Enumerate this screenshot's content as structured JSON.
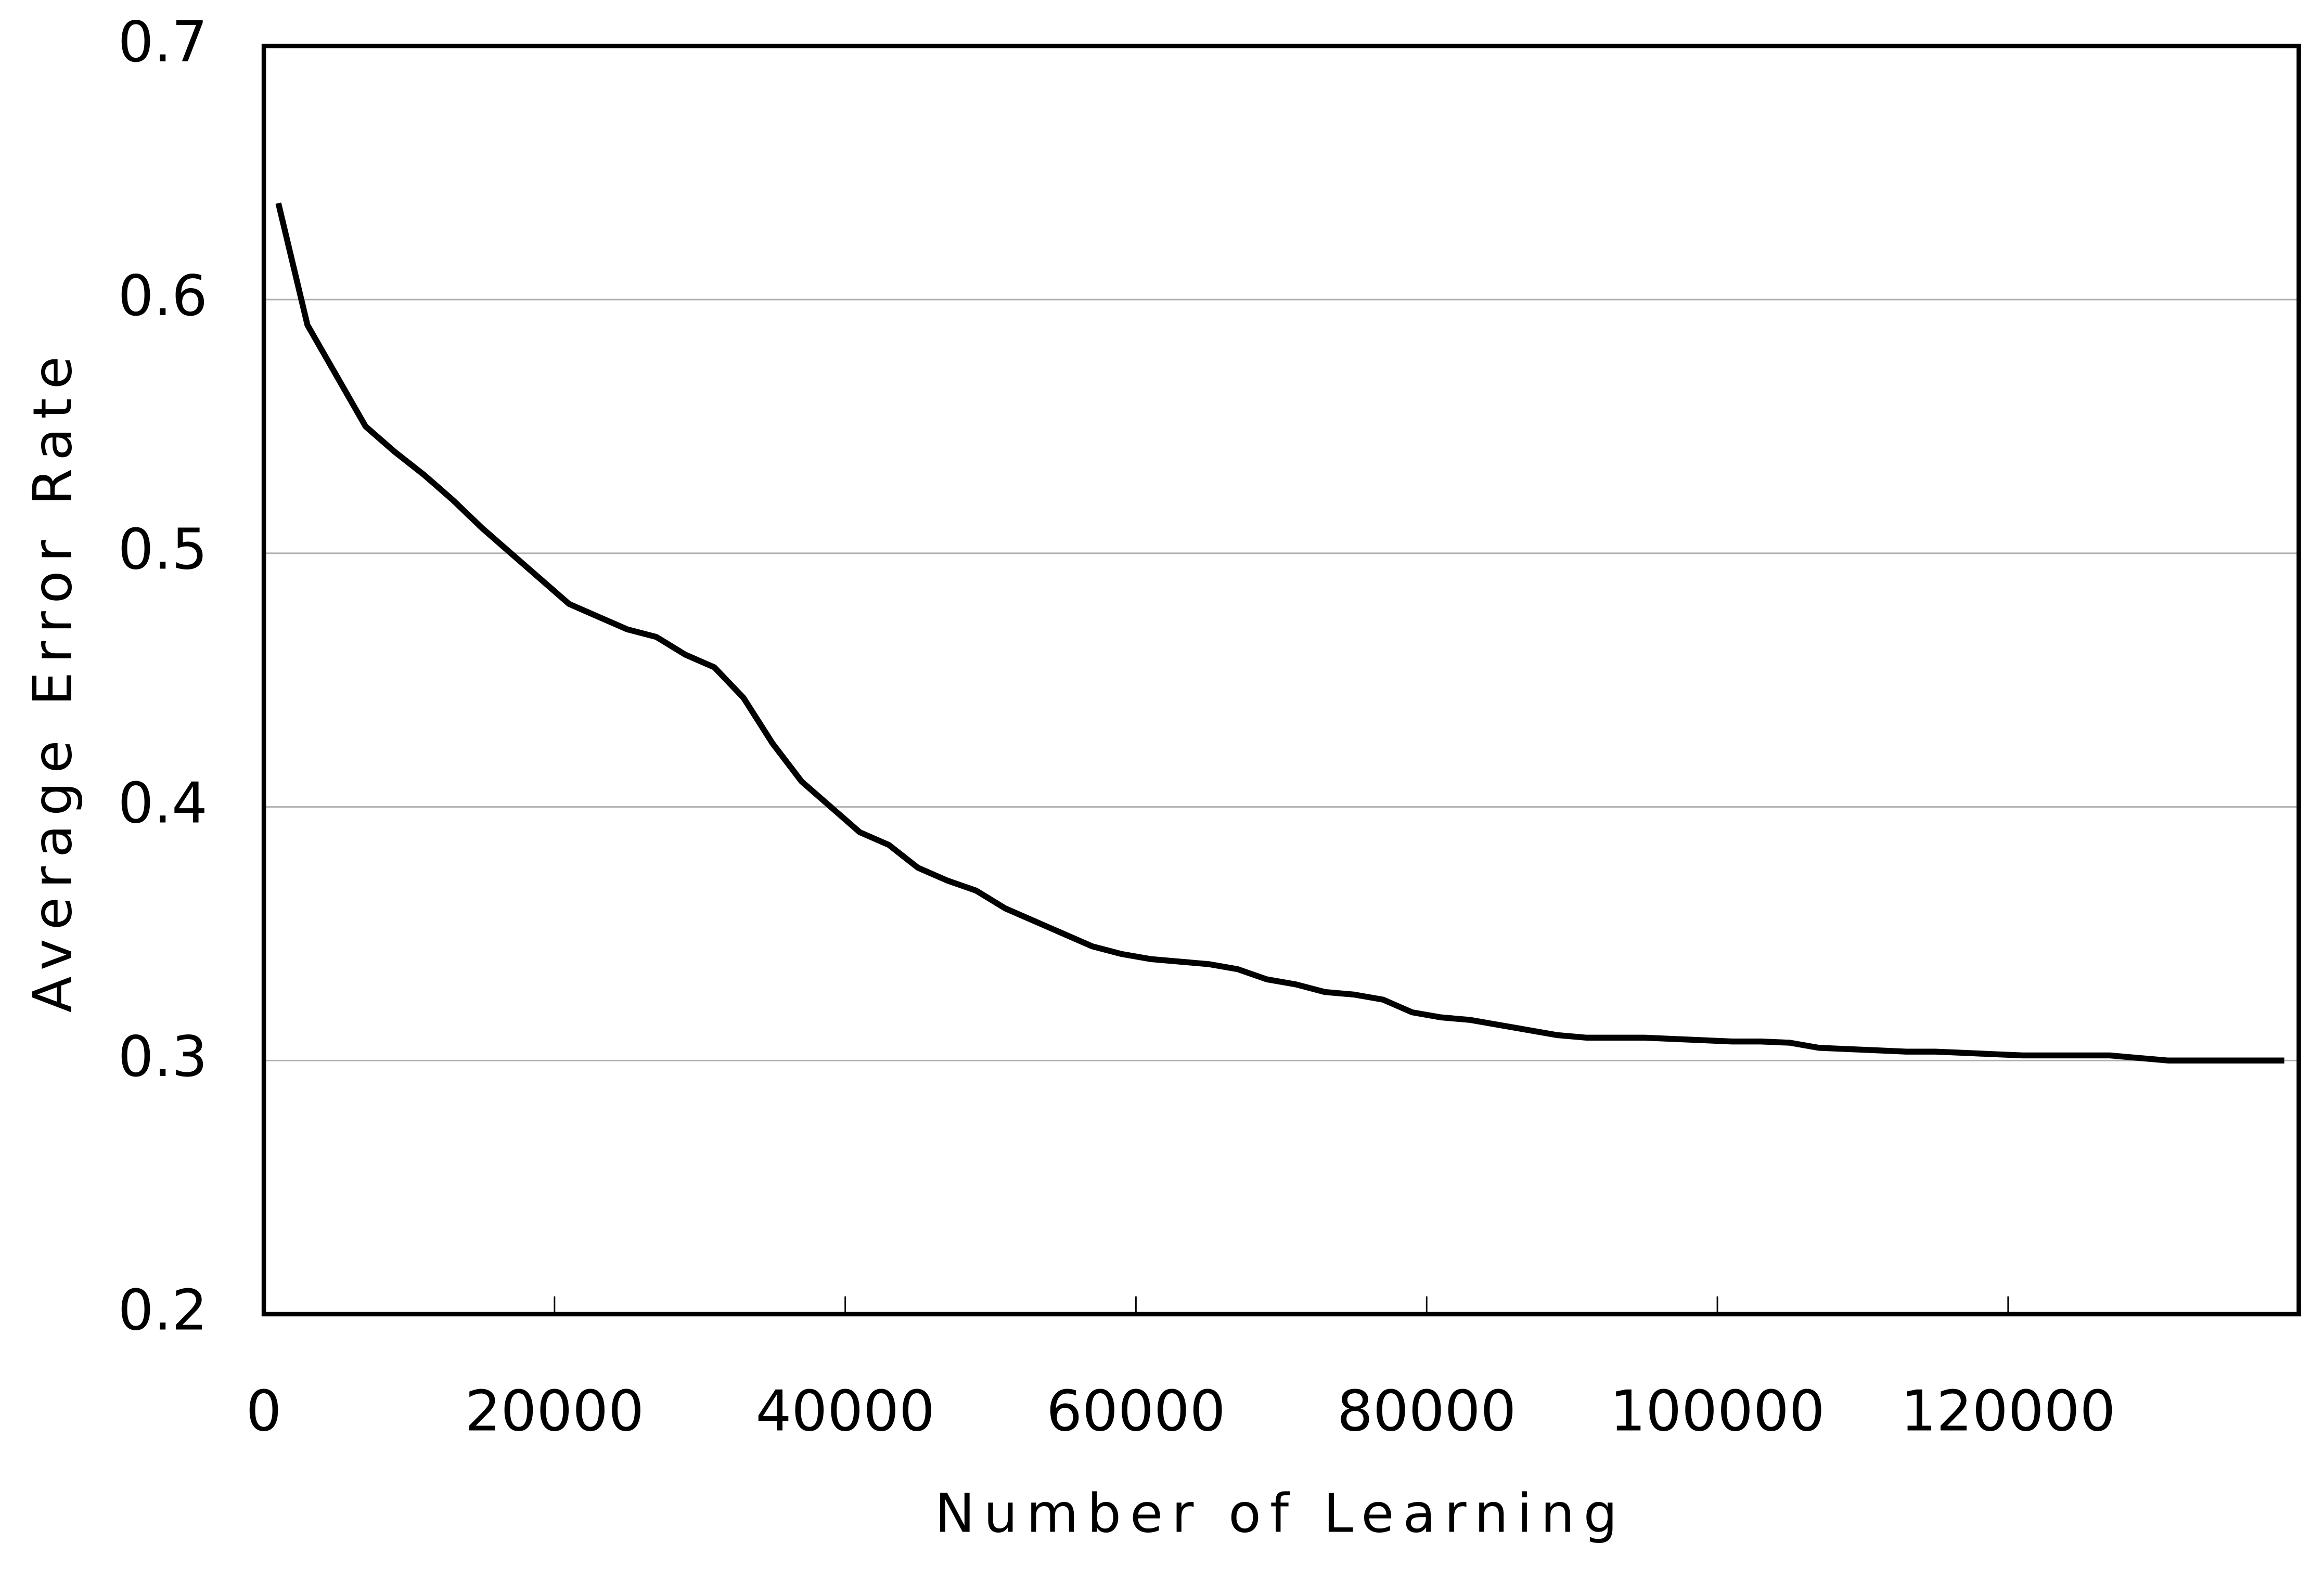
{
  "chart_data": {
    "type": "line",
    "x_label": "Number of Learning",
    "y_label": "Average Error Rate",
    "x": [
      1000,
      3000,
      5000,
      7000,
      9000,
      11000,
      13000,
      15000,
      17000,
      19000,
      21000,
      23000,
      25000,
      27000,
      29000,
      31000,
      33000,
      35000,
      37000,
      39000,
      41000,
      43000,
      45000,
      47000,
      49000,
      51000,
      53000,
      55000,
      57000,
      59000,
      61000,
      63000,
      65000,
      67000,
      69000,
      71000,
      73000,
      75000,
      77000,
      79000,
      81000,
      83000,
      85000,
      87000,
      89000,
      91000,
      93000,
      95000,
      97000,
      99000,
      101000,
      103000,
      105000,
      107000,
      109000,
      111000,
      113000,
      115000,
      117000,
      119000,
      121000,
      123000,
      125000,
      127000,
      129000,
      131000,
      133000,
      135000,
      137000,
      139000
    ],
    "series": [
      {
        "color": "#000000",
        "values": [
          0.638,
          0.59,
          0.57,
          0.55,
          0.54,
          0.531,
          0.521,
          0.51,
          0.5,
          0.49,
          0.48,
          0.475,
          0.47,
          0.467,
          0.46,
          0.455,
          0.443,
          0.425,
          0.41,
          0.4,
          0.39,
          0.385,
          0.376,
          0.371,
          0.367,
          0.36,
          0.355,
          0.35,
          0.345,
          0.342,
          0.34,
          0.339,
          0.338,
          0.336,
          0.332,
          0.33,
          0.327,
          0.326,
          0.324,
          0.319,
          0.317,
          0.316,
          0.314,
          0.312,
          0.31,
          0.309,
          0.309,
          0.309,
          0.3085,
          0.308,
          0.3075,
          0.3075,
          0.307,
          0.305,
          0.3045,
          0.304,
          0.3035,
          0.3035,
          0.303,
          0.3025,
          0.302,
          0.302,
          0.302,
          0.302,
          0.301,
          0.3,
          0.3,
          0.3,
          0.3,
          0.3
        ]
      }
    ],
    "xlim": [
      0,
      140000
    ],
    "xticks": [
      0,
      20000,
      40000,
      60000,
      80000,
      100000,
      120000
    ],
    "ylim": [
      0.2,
      0.7
    ],
    "yticks": [
      0.2,
      0.3,
      0.4,
      0.5,
      0.6,
      0.7
    ],
    "grid": true
  }
}
